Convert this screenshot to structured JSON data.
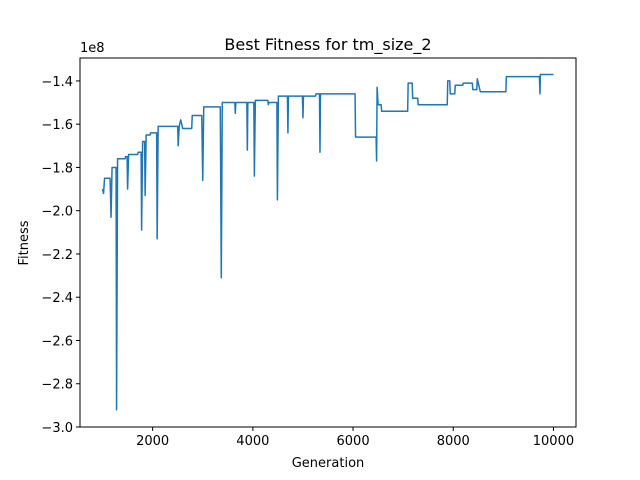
{
  "chart_data": {
    "type": "line",
    "title": "Best Fitness for tm_size_2",
    "xlabel": "Generation",
    "ylabel": "Fitness",
    "y_offset_label": "1e8",
    "x": [
      1000,
      1020,
      1040,
      1150,
      1170,
      1190,
      1270,
      1280,
      1300,
      1450,
      1460,
      1490,
      1500,
      1520,
      1700,
      1710,
      1770,
      1780,
      1800,
      1840,
      1850,
      1870,
      1950,
      1960,
      2080,
      2090,
      2110,
      2500,
      2510,
      2530,
      2560,
      2600,
      2780,
      2790,
      2980,
      3000,
      3020,
      3350,
      3370,
      3390,
      3640,
      3650,
      3660,
      3880,
      3890,
      3900,
      4020,
      4030,
      4050,
      4300,
      4310,
      4320,
      4480,
      4490,
      4510,
      4690,
      4700,
      4710,
      4990,
      5000,
      5010,
      5250,
      5260,
      5330,
      5340,
      5350,
      6040,
      6050,
      6460,
      6470,
      6480,
      6500,
      6560,
      6570,
      7090,
      7100,
      7180,
      7190,
      7290,
      7300,
      7880,
      7890,
      7930,
      7940,
      8030,
      8040,
      8190,
      8200,
      8380,
      8390,
      8470,
      8480,
      8540,
      9050,
      9060,
      9720,
      9730,
      9740,
      10000
    ],
    "values": [
      -1.9,
      -1.92,
      -1.85,
      -1.85,
      -2.03,
      -1.8,
      -1.8,
      -2.92,
      -1.76,
      -1.76,
      -1.75,
      -1.75,
      -1.9,
      -1.74,
      -1.74,
      -1.73,
      -1.73,
      -2.09,
      -1.68,
      -1.68,
      -1.93,
      -1.65,
      -1.65,
      -1.64,
      -1.64,
      -2.13,
      -1.61,
      -1.61,
      -1.7,
      -1.61,
      -1.58,
      -1.62,
      -1.62,
      -1.56,
      -1.56,
      -1.86,
      -1.52,
      -1.52,
      -2.31,
      -1.5,
      -1.5,
      -1.55,
      -1.5,
      -1.5,
      -1.72,
      -1.5,
      -1.5,
      -1.84,
      -1.49,
      -1.49,
      -1.51,
      -1.5,
      -1.5,
      -1.95,
      -1.47,
      -1.47,
      -1.64,
      -1.47,
      -1.47,
      -1.57,
      -1.47,
      -1.47,
      -1.46,
      -1.46,
      -1.73,
      -1.46,
      -1.46,
      -1.66,
      -1.66,
      -1.77,
      -1.43,
      -1.51,
      -1.51,
      -1.54,
      -1.54,
      -1.41,
      -1.41,
      -1.48,
      -1.48,
      -1.51,
      -1.51,
      -1.4,
      -1.4,
      -1.46,
      -1.46,
      -1.42,
      -1.42,
      -1.41,
      -1.41,
      -1.44,
      -1.44,
      -1.39,
      -1.45,
      -1.45,
      -1.38,
      -1.38,
      -1.46,
      -1.37,
      -1.37
    ],
    "color": "#1f77b4",
    "xlim": [
      550,
      10450
    ],
    "xticks": [
      2000,
      4000,
      6000,
      8000,
      10000
    ],
    "ylim": [
      -3.0,
      -1.294
    ],
    "yticks": [
      {
        "value": -3.0,
        "label": "−3.0"
      },
      {
        "value": -2.8,
        "label": "−2.8"
      },
      {
        "value": -2.6,
        "label": "−2.6"
      },
      {
        "value": -2.4,
        "label": "−2.4"
      },
      {
        "value": -2.2,
        "label": "−2.2"
      },
      {
        "value": -2.0,
        "label": "−2.0"
      },
      {
        "value": -1.8,
        "label": "−1.8"
      },
      {
        "value": -1.6,
        "label": "−1.6"
      },
      {
        "value": -1.4,
        "label": "−1.4"
      }
    ],
    "grid": false
  }
}
